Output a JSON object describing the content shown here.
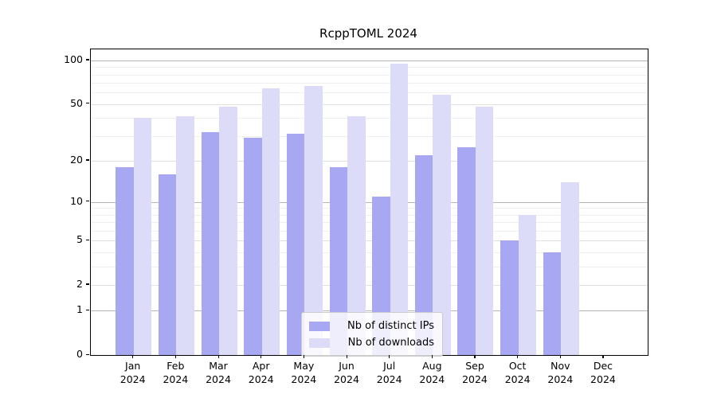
{
  "chart_data": {
    "type": "bar",
    "title": "RcppTOML 2024",
    "categories": [
      "Jan 2024",
      "Feb 2024",
      "Mar 2024",
      "Apr 2024",
      "May 2024",
      "Jun 2024",
      "Jul 2024",
      "Aug 2024",
      "Sep 2024",
      "Oct 2024",
      "Nov 2024",
      "Dec 2024"
    ],
    "series": [
      {
        "name": "Nb of distinct IPs",
        "color": "#a8a8f2",
        "values": [
          18,
          16,
          32,
          29,
          31,
          18,
          11,
          22,
          25,
          5,
          4,
          0
        ]
      },
      {
        "name": "Nb of downloads",
        "color": "#dcdcf9",
        "values": [
          40,
          41,
          48,
          64,
          67,
          41,
          95,
          58,
          48,
          8,
          14,
          0
        ]
      }
    ],
    "xlabel": "",
    "ylabel": "",
    "yscale": "log1p",
    "ylim": [
      0,
      118
    ],
    "yticks": [
      0,
      1,
      2,
      5,
      10,
      20,
      50,
      100
    ],
    "grid": {
      "major": [
        1,
        10,
        100
      ],
      "labeled_minor": [
        2,
        5,
        20,
        50
      ],
      "minor": [
        3,
        4,
        6,
        7,
        8,
        9,
        30,
        40,
        60,
        70,
        80,
        90
      ]
    },
    "legend_position": "lower center"
  },
  "colors": {
    "background": "#ffffff",
    "spine": "#000000",
    "grid_major": "#b5b5b5",
    "grid_mid": "#e0e0e0",
    "grid_minor": "#efefef",
    "bar_ips": "#a8a8f2",
    "bar_downloads": "#dcdcf9",
    "legend_border": "#cccccc"
  }
}
